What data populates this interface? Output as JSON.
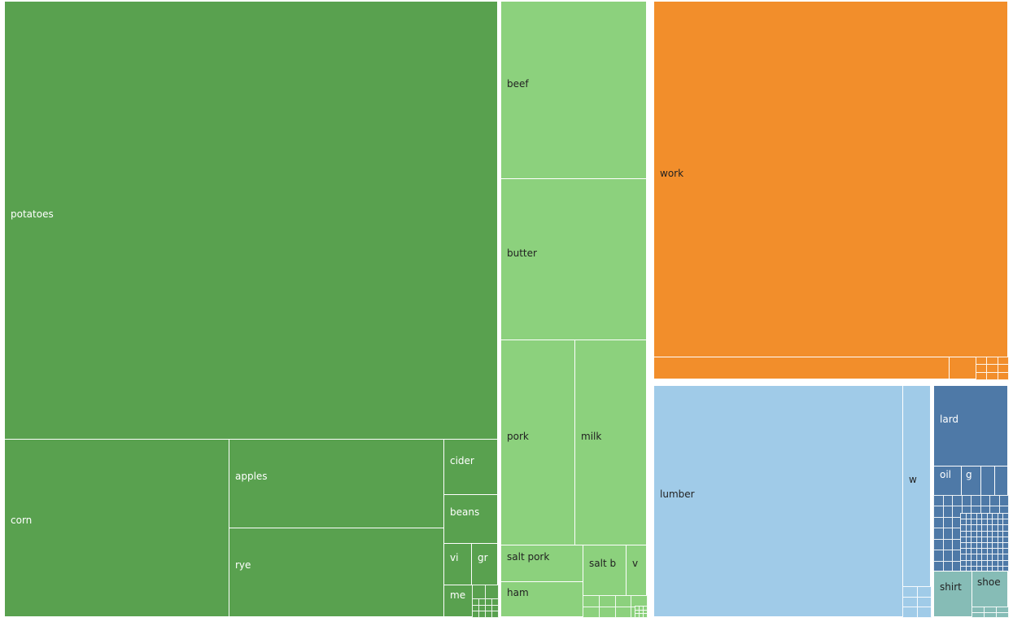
{
  "chart_data": {
    "type": "treemap",
    "colors": {
      "group_a": "#59a14f",
      "group_b": "#8cd17d",
      "group_c": "#f28e2b",
      "group_d": "#a0cbe8",
      "group_e": "#4e79a7",
      "group_f": "#86bcb6"
    },
    "labels": {
      "potatoes": "potatoes",
      "corn": "corn",
      "apples": "apples",
      "rye": "rye",
      "cider": "cider",
      "beans": "beans",
      "vi": "vi",
      "gr": "gr",
      "me": "me",
      "beef": "beef",
      "butter": "butter",
      "pork": "pork",
      "milk": "milk",
      "salt_pork": "salt pork",
      "salt_b": "salt b",
      "v": "v",
      "ham": "ham",
      "work": "work",
      "lumber": "lumber",
      "w": "w",
      "lard": "lard",
      "oil": "oil",
      "g": "g",
      "shirt": "shirt",
      "shoe": "shoe"
    },
    "groups": [
      {
        "color": "#59a14f",
        "items": [
          {
            "key": "potatoes",
            "value": 3248
          },
          {
            "key": "corn",
            "value": 588
          },
          {
            "key": "apples",
            "value": 281
          },
          {
            "key": "rye",
            "value": 267
          },
          {
            "key": "cider",
            "value": 43
          },
          {
            "key": "beans",
            "value": 38
          },
          {
            "key": "vi",
            "value": 21
          },
          {
            "key": "gr",
            "value": 18
          },
          {
            "key": "me",
            "value": 17
          }
        ]
      },
      {
        "color": "#8cd17d",
        "items": [
          {
            "key": "beef",
            "value": 381
          },
          {
            "key": "butter",
            "value": 348
          },
          {
            "key": "pork",
            "value": 227
          },
          {
            "key": "milk",
            "value": 207
          },
          {
            "key": "salt_pork",
            "value": 39
          },
          {
            "key": "salt_b",
            "value": 29
          },
          {
            "key": "v",
            "value": 16
          },
          {
            "key": "ham",
            "value": 35
          }
        ]
      },
      {
        "color": "#f28e2b",
        "items": [
          {
            "key": "work",
            "value": 1857
          }
        ]
      },
      {
        "color": "#a0cbe8",
        "items": [
          {
            "key": "lumber",
            "value": 835
          },
          {
            "key": "w",
            "value": 83
          }
        ]
      },
      {
        "color": "#4e79a7",
        "items": [
          {
            "key": "lard",
            "value": 84
          },
          {
            "key": "oil",
            "value": 33
          },
          {
            "key": "g",
            "value": 23
          }
        ]
      },
      {
        "color": "#86bcb6",
        "items": [
          {
            "key": "shirt",
            "value": 44
          },
          {
            "key": "shoe",
            "value": 41
          }
        ]
      }
    ]
  }
}
